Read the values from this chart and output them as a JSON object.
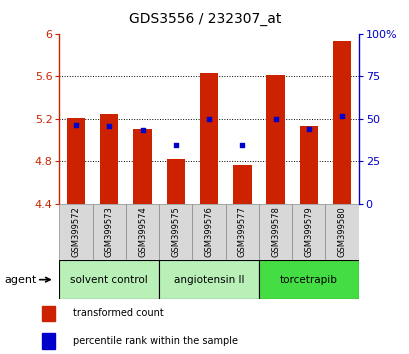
{
  "title": "GDS3556 / 232307_at",
  "samples": [
    "GSM399572",
    "GSM399573",
    "GSM399574",
    "GSM399575",
    "GSM399576",
    "GSM399577",
    "GSM399578",
    "GSM399579",
    "GSM399580"
  ],
  "bar_values": [
    5.21,
    5.24,
    5.1,
    4.82,
    5.63,
    4.76,
    5.61,
    5.13,
    5.93
  ],
  "bar_base": 4.4,
  "percentile_values": [
    5.14,
    5.13,
    5.09,
    4.95,
    5.2,
    4.95,
    5.2,
    5.1,
    5.22
  ],
  "bar_color": "#cc2200",
  "dot_color": "#0000cc",
  "ylim_left": [
    4.4,
    6.0
  ],
  "ylim_right": [
    0,
    100
  ],
  "yticks_left": [
    4.4,
    4.8,
    5.2,
    5.6,
    6.0
  ],
  "ytick_labels_left": [
    "4.4",
    "4.8",
    "5.2",
    "5.6",
    "6"
  ],
  "yticks_right": [
    0,
    25,
    50,
    75,
    100
  ],
  "ytick_labels_right": [
    "0",
    "25",
    "50",
    "75",
    "100%"
  ],
  "gridlines": [
    4.8,
    5.2,
    5.6
  ],
  "groups": [
    {
      "label": "solvent control",
      "indices": [
        0,
        1,
        2
      ],
      "color": "#b8f0b8"
    },
    {
      "label": "angiotensin II",
      "indices": [
        3,
        4,
        5
      ],
      "color": "#b8f0b8"
    },
    {
      "label": "torcetrapib",
      "indices": [
        6,
        7,
        8
      ],
      "color": "#44dd44"
    }
  ],
  "agent_label": "agent",
  "legend_red_label": "transformed count",
  "legend_blue_label": "percentile rank within the sample",
  "bar_width": 0.55,
  "tick_color_left": "#cc2200",
  "tick_color_right": "#0000cc",
  "sample_box_color": "#d8d8d8",
  "title_fontsize": 10,
  "bar_group_sep": [
    2.5,
    5.5
  ]
}
